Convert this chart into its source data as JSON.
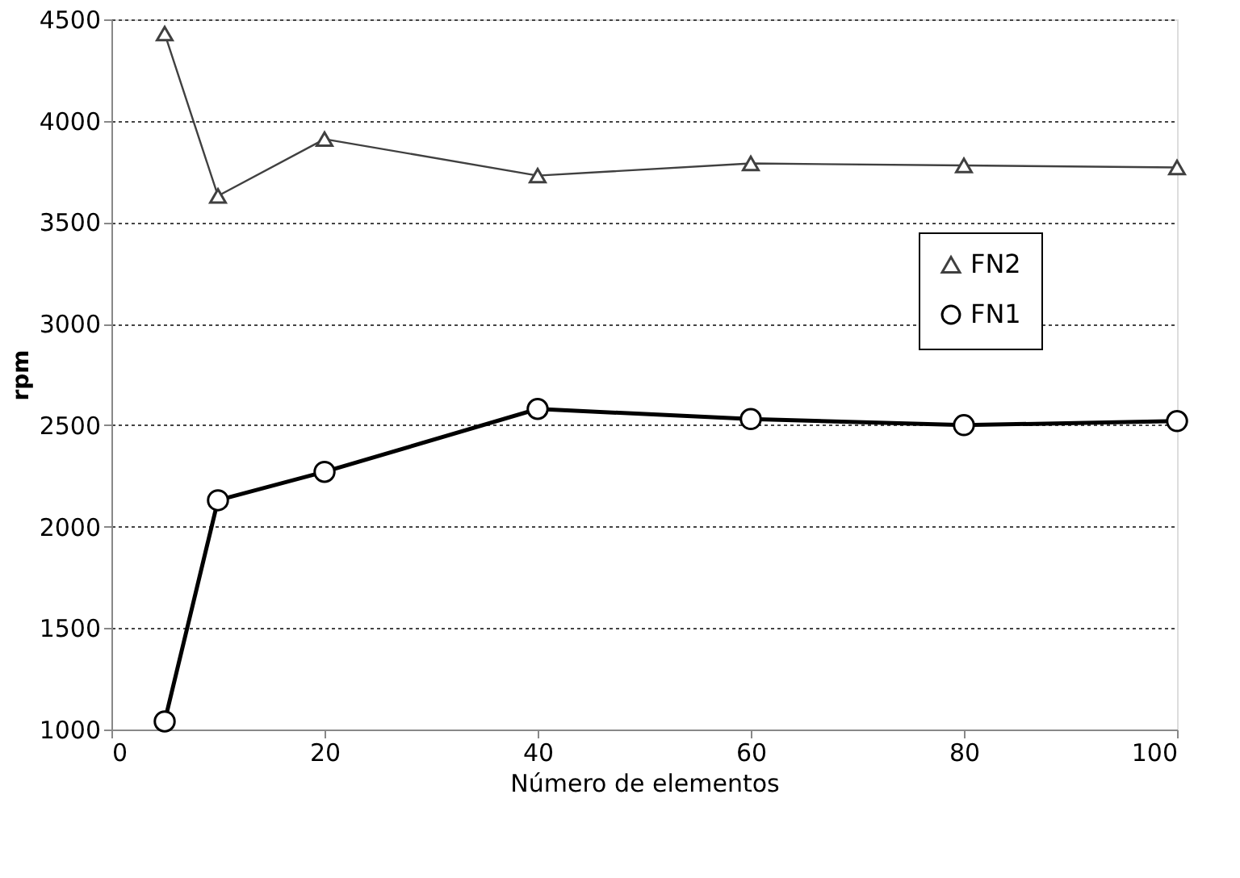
{
  "chart_data": {
    "type": "line",
    "xlabel": "Número de elementos",
    "ylabel": "rpm",
    "x": [
      5,
      10,
      20,
      40,
      60,
      80,
      100
    ],
    "series": [
      {
        "name": "FN2",
        "color": "#404040",
        "marker": "triangle",
        "values": [
          4430,
          3630,
          3910,
          3730,
          3790,
          3780,
          3770
        ]
      },
      {
        "name": "FN1",
        "color": "#000000",
        "marker": "circle",
        "values": [
          1040,
          2130,
          2270,
          2580,
          2530,
          2500,
          2520
        ]
      }
    ],
    "xlim": [
      0,
      100
    ],
    "xticks": [
      0,
      20,
      40,
      60,
      80,
      100
    ],
    "ylim": [
      1000,
      4500
    ],
    "yticks": [
      1000,
      1500,
      2000,
      2500,
      3000,
      3500,
      4000,
      4500
    ],
    "grid": "y",
    "legend": "right",
    "line_style": "solid"
  }
}
